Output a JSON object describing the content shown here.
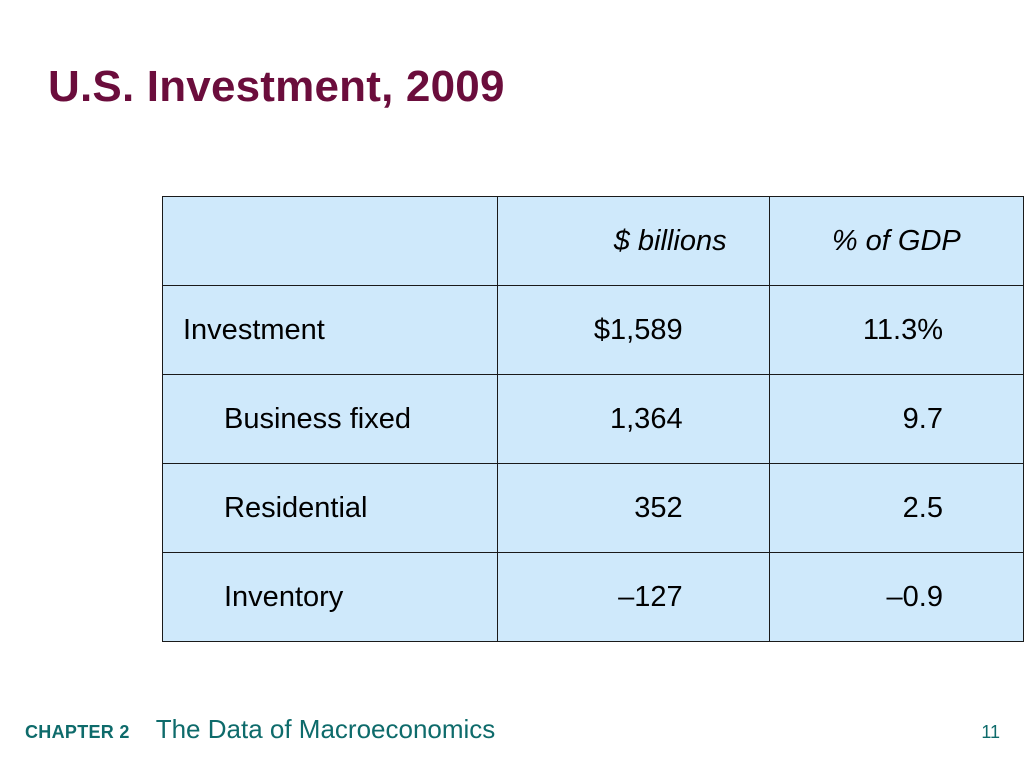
{
  "slide": {
    "title": "U.S. Investment, 2009"
  },
  "table": {
    "headers": [
      "",
      "$ billions",
      "% of GDP"
    ],
    "rows": [
      {
        "label": "Investment",
        "billions": "$1,589",
        "pct_gdp": "11.3%"
      },
      {
        "label": "Business fixed",
        "billions": "1,364",
        "pct_gdp": "9.7"
      },
      {
        "label": "Residential",
        "billions": "352",
        "pct_gdp": "2.5"
      },
      {
        "label": "Inventory",
        "billions": "–127",
        "pct_gdp": "–0.9"
      }
    ]
  },
  "footer": {
    "chapter": "CHAPTER 2",
    "subtitle": "The Data of Macroeconomics",
    "page_number": "11"
  },
  "colors": {
    "title": "#6b0d3c",
    "table_fill": "#cfe9fb",
    "footer": "#0e6b6b"
  }
}
